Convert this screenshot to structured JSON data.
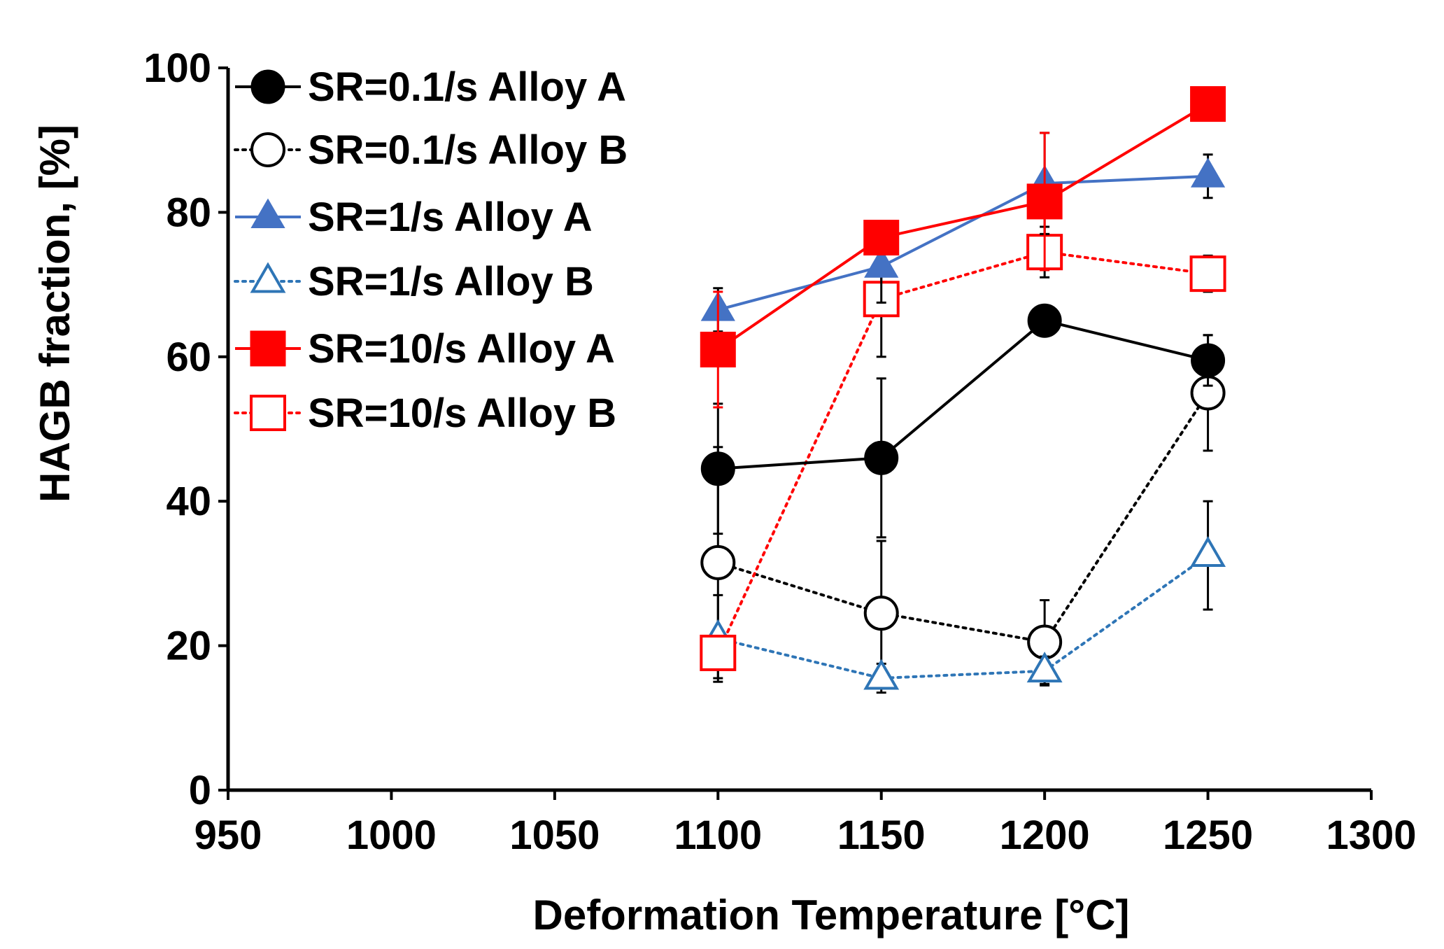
{
  "chart_data": {
    "type": "line",
    "title": "",
    "xlabel": "Deformation Temperature [°C]",
    "ylabel": "HAGB fraction, [%]",
    "xlim": [
      950,
      1300
    ],
    "ylim": [
      0,
      100
    ],
    "xticks": [
      950,
      1000,
      1050,
      1100,
      1150,
      1200,
      1250,
      1300
    ],
    "yticks": [
      0,
      20,
      40,
      60,
      80,
      100
    ],
    "grid": false,
    "legend_position": "top-left",
    "x": [
      1100,
      1150,
      1200,
      1250
    ],
    "series": [
      {
        "name": "SR=0.1/s Alloy A",
        "values": [
          44.5,
          46,
          65,
          59.5
        ],
        "errors": [
          9,
          11,
          1.2,
          3.5
        ],
        "color": "#000000",
        "marker": "circle",
        "filled": true,
        "dashed": false
      },
      {
        "name": "SR=0.1/s Alloy B",
        "values": [
          31.5,
          24.5,
          20.5,
          55
        ],
        "errors": [
          16,
          10,
          5.8,
          8
        ],
        "color": "#000000",
        "marker": "circle",
        "filled": false,
        "dashed": true
      },
      {
        "name": "SR=1/s Alloy A",
        "values": [
          66.5,
          72.5,
          84,
          85
        ],
        "errors": [
          3,
          5,
          7,
          3
        ],
        "color": "#4472c4",
        "marker": "triangle",
        "filled": true,
        "dashed": false
      },
      {
        "name": "SR=1/s Alloy B",
        "values": [
          21,
          15.5,
          16.5,
          32.5
        ],
        "errors": [
          6,
          2,
          2,
          7.5
        ],
        "color": "#2e75b6",
        "marker": "triangle",
        "filled": false,
        "dashed": true
      },
      {
        "name": "SR=10/s Alloy A",
        "values": [
          61,
          76.5,
          81.5,
          95
        ],
        "errors": [
          8,
          1.5,
          9.5,
          2
        ],
        "color": "#ff0000",
        "marker": "square",
        "filled": true,
        "dashed": false
      },
      {
        "name": "SR=10/s Alloy B",
        "values": [
          19,
          68,
          74.5,
          71.5
        ],
        "errors": [
          2,
          8,
          3.5,
          2.5
        ],
        "color": "#ff0000",
        "marker": "square",
        "filled": false,
        "dashed": true
      }
    ]
  }
}
